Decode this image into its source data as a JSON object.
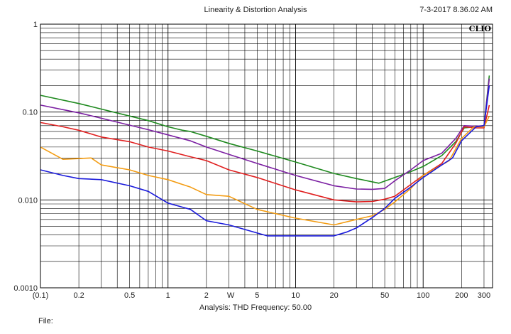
{
  "header": {
    "title": "Linearity & Distortion Analysis",
    "timestamp": "7-3-2017 8.36.02 AM"
  },
  "footer": {
    "analysis": "Analysis: THD  Frequency: 50.00",
    "file": "File:"
  },
  "chart_data": {
    "type": "line",
    "title": "Linearity & Distortion Analysis",
    "logo": "CLIO",
    "xscale": "log",
    "yscale": "log",
    "xlim": [
      0.1,
      350
    ],
    "ylim": [
      0.001,
      1
    ],
    "grid": true,
    "x_tick_labels": [
      {
        "v": 0.1,
        "t": "(0.1)"
      },
      {
        "v": 0.2,
        "t": "0.2"
      },
      {
        "v": 0.5,
        "t": "0.5"
      },
      {
        "v": 1,
        "t": "1"
      },
      {
        "v": 2,
        "t": "2"
      },
      {
        "v": 3.1,
        "t": "W"
      },
      {
        "v": 5,
        "t": "5"
      },
      {
        "v": 10,
        "t": "10"
      },
      {
        "v": 20,
        "t": "20"
      },
      {
        "v": 50,
        "t": "50"
      },
      {
        "v": 100,
        "t": "100"
      },
      {
        "v": 200,
        "t": "200"
      },
      {
        "v": 300,
        "t": "300"
      }
    ],
    "y_tick_labels": [
      {
        "v": 1,
        "t": "1"
      },
      {
        "v": 0.1,
        "t": "0.10"
      },
      {
        "v": 0.01,
        "t": "0.010"
      },
      {
        "v": 0.001,
        "t": "0.0010"
      }
    ],
    "series": [
      {
        "color": "#1f8a1f",
        "x": [
          0.1,
          0.2,
          0.3,
          0.5,
          0.7,
          1,
          1.3,
          1.5,
          2,
          3,
          5,
          10,
          20,
          30,
          45,
          60,
          80,
          100,
          140,
          180,
          210,
          260,
          300,
          330
        ],
        "y": [
          0.155,
          0.125,
          0.108,
          0.09,
          0.08,
          0.068,
          0.062,
          0.06,
          0.053,
          0.044,
          0.036,
          0.027,
          0.02,
          0.0175,
          0.0155,
          0.018,
          0.021,
          0.024,
          0.032,
          0.046,
          0.066,
          0.068,
          0.07,
          0.26
        ]
      },
      {
        "color": "#7b1fa2",
        "x": [
          0.1,
          0.2,
          0.3,
          0.5,
          0.7,
          1,
          1.5,
          2,
          3,
          5,
          10,
          20,
          30,
          40,
          50,
          60,
          80,
          100,
          140,
          180,
          210,
          260,
          300,
          330
        ],
        "y": [
          0.12,
          0.098,
          0.085,
          0.071,
          0.063,
          0.055,
          0.047,
          0.04,
          0.033,
          0.026,
          0.019,
          0.0145,
          0.0133,
          0.0132,
          0.0135,
          0.0165,
          0.022,
          0.028,
          0.034,
          0.05,
          0.07,
          0.069,
          0.07,
          0.24
        ]
      },
      {
        "color": "#e02020",
        "x": [
          0.1,
          0.15,
          0.2,
          0.3,
          0.5,
          0.7,
          1,
          1.5,
          2,
          3,
          5,
          10,
          20,
          30,
          40,
          50,
          60,
          80,
          100,
          140,
          180,
          210,
          260,
          300,
          330
        ],
        "y": [
          0.076,
          0.068,
          0.062,
          0.052,
          0.046,
          0.04,
          0.036,
          0.031,
          0.028,
          0.022,
          0.018,
          0.013,
          0.01,
          0.0095,
          0.0096,
          0.0102,
          0.011,
          0.015,
          0.019,
          0.026,
          0.044,
          0.068,
          0.066,
          0.066,
          0.12
        ]
      },
      {
        "color": "#f39c12",
        "x": [
          0.1,
          0.15,
          0.25,
          0.3,
          0.5,
          0.7,
          1,
          1.5,
          2,
          3,
          5,
          10,
          20,
          30,
          40,
          50,
          60,
          80,
          100,
          140,
          160,
          200,
          250,
          300,
          330
        ],
        "y": [
          0.04,
          0.029,
          0.03,
          0.025,
          0.022,
          0.019,
          0.017,
          0.014,
          0.0115,
          0.011,
          0.0078,
          0.0062,
          0.0052,
          0.006,
          0.0066,
          0.0078,
          0.0095,
          0.0135,
          0.019,
          0.025,
          0.028,
          0.05,
          0.068,
          0.068,
          0.09
        ]
      },
      {
        "color": "#1a1adb",
        "x": [
          0.1,
          0.15,
          0.2,
          0.3,
          0.5,
          0.7,
          1,
          1.5,
          2,
          3,
          5,
          6,
          10,
          20,
          25,
          30,
          40,
          50,
          60,
          80,
          100,
          140,
          170,
          200,
          260,
          300,
          330
        ],
        "y": [
          0.022,
          0.019,
          0.0175,
          0.017,
          0.0145,
          0.0125,
          0.0092,
          0.0078,
          0.0058,
          0.0052,
          0.0042,
          0.0039,
          0.0039,
          0.0039,
          0.0043,
          0.0048,
          0.0063,
          0.008,
          0.0104,
          0.014,
          0.018,
          0.025,
          0.03,
          0.047,
          0.068,
          0.07,
          0.2
        ]
      }
    ]
  }
}
